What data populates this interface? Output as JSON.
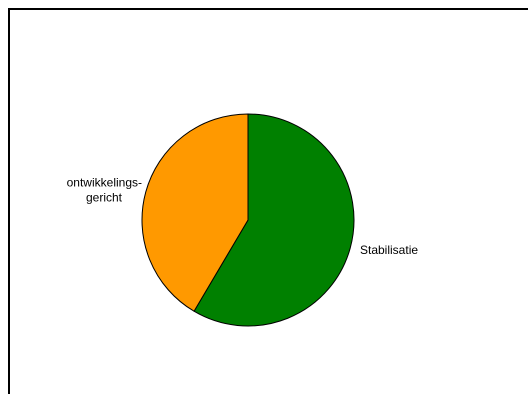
{
  "chart_data": {
    "type": "pie",
    "title": "",
    "slices": [
      {
        "label_lines": [
          "Stabilisatie"
        ],
        "value": 58.5,
        "color": "#008000"
      },
      {
        "label_lines": [
          "ontwikkelings-",
          "gericht"
        ],
        "value": 41.5,
        "color": "#FF9900"
      }
    ],
    "legend": "none",
    "start_angle_deg": 0,
    "direction": "clockwise",
    "border_color": "#000000"
  }
}
